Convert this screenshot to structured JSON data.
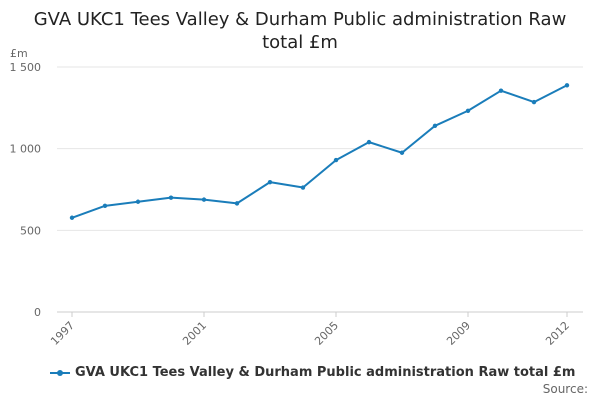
{
  "chart_data": {
    "type": "line",
    "title_lines": [
      "GVA UKC1 Tees Valley & Durham Public administration Raw",
      "total £m"
    ],
    "ylabel": "£m",
    "xlabel": "",
    "x": [
      1997,
      1998,
      1999,
      2000,
      2001,
      2002,
      2003,
      2004,
      2005,
      2006,
      2007,
      2008,
      2009,
      2010,
      2011,
      2012
    ],
    "x_tick_labels": [
      "1997",
      "2001",
      "2005",
      "2009",
      "2012"
    ],
    "y_tick_labels": [
      "0",
      "500",
      "1 000",
      "1 500"
    ],
    "y_ticks": [
      0,
      500,
      1000,
      1500
    ],
    "ylim": [
      0,
      1500
    ],
    "series": [
      {
        "name": "GVA UKC1 Tees Valley & Durham Public administration Raw total £m",
        "color": "#1a7dba",
        "values": [
          577,
          650,
          675,
          700,
          688,
          665,
          795,
          762,
          930,
          1040,
          975,
          1140,
          1232,
          1355,
          1285,
          1388
        ]
      }
    ],
    "grid": true,
    "legend_position": "bottom-left"
  },
  "source_label": "Source:"
}
